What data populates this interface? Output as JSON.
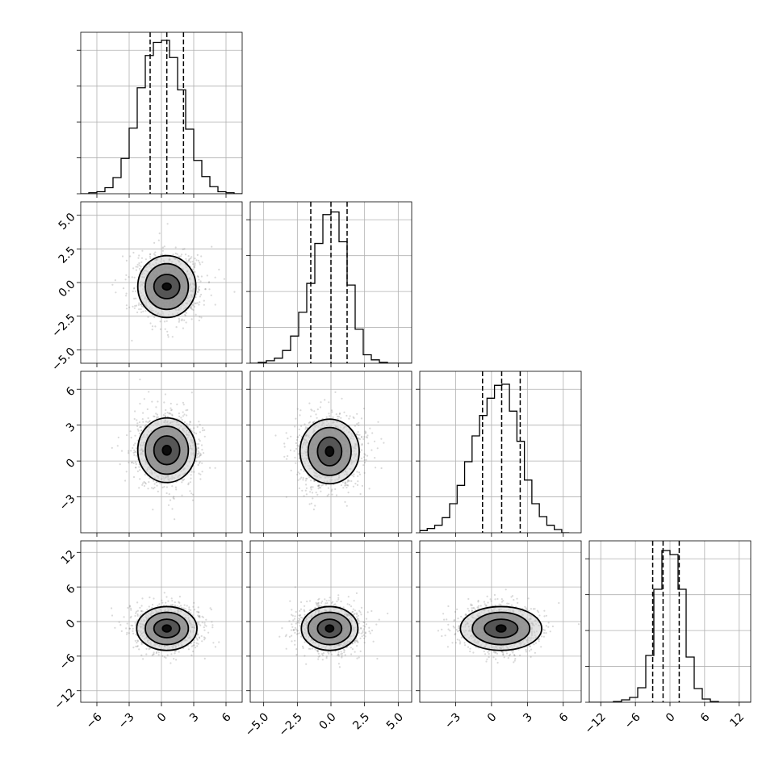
{
  "chart_data": {
    "type": "corner",
    "parameters": 4,
    "axis_ranges": [
      [
        -7.5,
        7.5
      ],
      [
        -6.0,
        6.0
      ],
      [
        -6.0,
        7.5
      ],
      [
        -14.0,
        14.0
      ]
    ],
    "x_ticks": [
      {
        "values": [
          -6,
          -3,
          0,
          3,
          6
        ],
        "labels": [
          "−6",
          "−3",
          "0",
          "3",
          "6"
        ]
      },
      {
        "values": [
          -5.0,
          -2.5,
          0.0,
          2.5,
          5.0
        ],
        "labels": [
          "−5.0",
          "−2.5",
          "0.0",
          "2.5",
          "5.0"
        ]
      },
      {
        "values": [
          -3,
          0,
          3,
          6
        ],
        "labels": [
          "−3",
          "0",
          "3",
          "6"
        ]
      },
      {
        "values": [
          -12,
          -6,
          0,
          6,
          12
        ],
        "labels": [
          "−12",
          "−6",
          "0",
          "6",
          "12"
        ]
      }
    ],
    "y_ticks": [
      null,
      {
        "values": [
          -5.0,
          -2.5,
          0.0,
          2.5,
          5.0
        ],
        "labels": [
          "−5.0",
          "−2.5",
          "0.0",
          "2.5",
          "5.0"
        ]
      },
      {
        "values": [
          -3,
          0,
          3,
          6
        ],
        "labels": [
          "−3",
          "0",
          "3",
          "6"
        ]
      },
      {
        "values": [
          -12,
          -6,
          0,
          6,
          12
        ],
        "labels": [
          "−12",
          "−6",
          "0",
          "6",
          "12"
        ]
      }
    ],
    "grid": true,
    "histograms": [
      {
        "param": 0,
        "bin_edges": [
          -7.5,
          -6.75,
          -6.0,
          -5.25,
          -4.5,
          -3.75,
          -3.0,
          -2.25,
          -1.5,
          -0.75,
          0.0,
          0.75,
          1.5,
          2.25,
          3.0,
          3.75,
          4.5,
          5.25,
          6.0,
          6.75,
          7.5
        ],
        "counts": [
          0,
          1,
          2,
          6,
          16,
          35,
          65,
          105,
          137,
          150,
          152,
          135,
          103,
          64,
          33,
          17,
          7,
          2,
          1,
          0
        ],
        "quantiles": [
          -1.05,
          0.5,
          2.05
        ],
        "ymax": 160
      },
      {
        "param": 1,
        "bin_edges": [
          -6.0,
          -5.4,
          -4.8,
          -4.2,
          -3.6,
          -3.0,
          -2.4,
          -1.8,
          -1.2,
          -0.6,
          0.0,
          0.6,
          1.2,
          1.8,
          2.4,
          3.0,
          3.6,
          4.2,
          4.8,
          5.4,
          6.0
        ],
        "counts": [
          0,
          1,
          3,
          6,
          15,
          32,
          60,
          94,
          141,
          175,
          178,
          143,
          92,
          40,
          10,
          4,
          1,
          0,
          0,
          0
        ],
        "quantiles": [
          -1.5,
          0.0,
          1.2
        ],
        "ymax": 190
      },
      {
        "param": 2,
        "bin_edges": [
          -6.0,
          -5.375,
          -4.75,
          -4.125,
          -3.5,
          -2.875,
          -2.25,
          -1.625,
          -1.0,
          -0.375,
          0.25,
          0.875,
          1.5,
          2.125,
          2.75,
          3.375,
          4.0,
          4.625,
          5.25,
          5.875,
          6.5
        ],
        "counts": [
          2,
          4,
          7,
          14,
          27,
          44,
          66,
          90,
          109,
          125,
          137,
          138,
          113,
          85,
          49,
          27,
          15,
          7,
          3,
          0
        ],
        "quantiles": [
          -0.75,
          0.85,
          2.4
        ],
        "ymax": 150
      },
      {
        "param": 3,
        "bin_edges": [
          -14.0,
          -12.6,
          -11.2,
          -9.8,
          -8.4,
          -7.0,
          -5.6,
          -4.2,
          -2.8,
          -1.4,
          0.0,
          1.4,
          2.8,
          4.2,
          5.6,
          7.0,
          8.4,
          9.8,
          11.2,
          12.6,
          14.0
        ],
        "counts": [
          0,
          0,
          0,
          1,
          3,
          6,
          18,
          58,
          140,
          188,
          183,
          140,
          56,
          17,
          4,
          1,
          0,
          0,
          0,
          0
        ],
        "quantiles": [
          -3.0,
          -1.2,
          1.6
        ],
        "ymax": 200
      }
    ],
    "scatter_2d": [
      {
        "x_param": 0,
        "y_param": 1,
        "center": [
          0.5,
          -0.3
        ],
        "spread": [
          1.5,
          1.2
        ],
        "contours": [
          [
            0.4,
            0.25
          ],
          [
            1.2,
            0.9
          ],
          [
            2.0,
            1.7
          ],
          [
            2.7,
            2.3
          ]
        ]
      },
      {
        "x_param": 0,
        "y_param": 2,
        "center": [
          0.5,
          0.9
        ],
        "spread": [
          1.5,
          1.5
        ],
        "contours": [
          [
            0.4,
            0.4
          ],
          [
            1.2,
            1.2
          ],
          [
            2.0,
            2.0
          ],
          [
            2.7,
            2.7
          ]
        ]
      },
      {
        "x_param": 1,
        "y_param": 2,
        "center": [
          -0.1,
          0.8
        ],
        "spread": [
          1.2,
          1.5
        ],
        "contours": [
          [
            0.3,
            0.4
          ],
          [
            0.9,
            1.2
          ],
          [
            1.6,
            2.0
          ],
          [
            2.2,
            2.7
          ]
        ]
      },
      {
        "x_param": 0,
        "y_param": 3,
        "center": [
          0.5,
          -1.2
        ],
        "spread": [
          1.5,
          2.0
        ],
        "contours": [
          [
            0.4,
            0.6
          ],
          [
            1.2,
            1.6
          ],
          [
            2.0,
            2.8
          ],
          [
            2.8,
            3.8
          ]
        ]
      },
      {
        "x_param": 1,
        "y_param": 3,
        "center": [
          -0.1,
          -1.2
        ],
        "spread": [
          1.2,
          2.0
        ],
        "contours": [
          [
            0.3,
            0.6
          ],
          [
            0.9,
            1.6
          ],
          [
            1.6,
            2.8
          ],
          [
            2.1,
            3.8
          ]
        ]
      },
      {
        "x_param": 2,
        "y_param": 3,
        "center": [
          0.8,
          -1.2
        ],
        "spread": [
          1.6,
          2.0
        ],
        "contours": [
          [
            0.4,
            0.6
          ],
          [
            1.4,
            1.6
          ],
          [
            2.4,
            2.8
          ],
          [
            3.4,
            3.8
          ]
        ]
      }
    ],
    "colors": {
      "ink": "#000000",
      "grid": "#b0b0b0",
      "points": "#777777"
    }
  }
}
